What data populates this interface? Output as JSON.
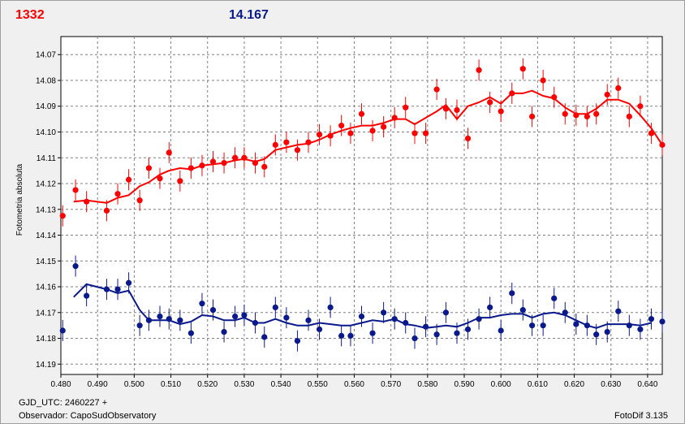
{
  "header": {
    "red_value": "1332",
    "blue_value": "14.167"
  },
  "footer": {
    "gjd": "GJD_UTC: 2460227 +",
    "observer": "Observador: CapoSudObservatory",
    "version": "FotoDif 3.135"
  },
  "colors": {
    "red": "#ff0000",
    "blue": "#0a1a8c",
    "grid": "#808080"
  },
  "chart_data": {
    "type": "scatter",
    "ylabel": "Fotometria absoluta",
    "xlim": [
      0.48,
      0.644
    ],
    "ylim": [
      14.194,
      14.063
    ],
    "y_inverted": true,
    "grid": true,
    "x_ticks": [
      "0.480",
      "0.490",
      "0.500",
      "0.510",
      "0.520",
      "0.530",
      "0.540",
      "0.550",
      "0.560",
      "0.570",
      "0.580",
      "0.590",
      "0.600",
      "0.610",
      "0.620",
      "0.630",
      "0.640"
    ],
    "y_ticks": [
      "14.07",
      "14.08",
      "14.09",
      "14.10",
      "14.11",
      "14.12",
      "14.13",
      "14.14",
      "14.15",
      "14.16",
      "14.17",
      "14.18",
      "14.19"
    ],
    "series": [
      {
        "color": "#ff0000",
        "points": [
          [
            0.4805,
            14.1325
          ],
          [
            0.484,
            14.1225
          ],
          [
            0.487,
            14.127
          ],
          [
            0.4925,
            14.1305
          ],
          [
            0.4955,
            14.124
          ],
          [
            0.4985,
            14.1185
          ],
          [
            0.5015,
            14.1265
          ],
          [
            0.504,
            14.114
          ],
          [
            0.507,
            14.118
          ],
          [
            0.5095,
            14.108
          ],
          [
            0.5125,
            14.119
          ],
          [
            0.5155,
            14.114
          ],
          [
            0.5185,
            14.113
          ],
          [
            0.5215,
            14.1115
          ],
          [
            0.5245,
            14.112
          ],
          [
            0.5275,
            14.11
          ],
          [
            0.53,
            14.11
          ],
          [
            0.533,
            14.112
          ],
          [
            0.5355,
            14.1135
          ],
          [
            0.5385,
            14.105
          ],
          [
            0.5415,
            14.104
          ],
          [
            0.5445,
            14.107
          ],
          [
            0.5475,
            14.104
          ],
          [
            0.5505,
            14.101
          ],
          [
            0.5535,
            14.1015
          ],
          [
            0.5565,
            14.0975
          ],
          [
            0.559,
            14.1005
          ],
          [
            0.562,
            14.093
          ],
          [
            0.565,
            14.0995
          ],
          [
            0.568,
            14.098
          ],
          [
            0.571,
            14.0945
          ],
          [
            0.574,
            14.0905
          ],
          [
            0.5765,
            14.1005
          ],
          [
            0.5795,
            14.1005
          ],
          [
            0.5825,
            14.0835
          ],
          [
            0.585,
            14.091
          ],
          [
            0.588,
            14.0915
          ],
          [
            0.591,
            14.1025
          ],
          [
            0.594,
            14.076
          ],
          [
            0.597,
            14.0885
          ],
          [
            0.6,
            14.092
          ],
          [
            0.603,
            14.085
          ],
          [
            0.606,
            14.0755
          ],
          [
            0.6085,
            14.094
          ],
          [
            0.6115,
            14.08
          ],
          [
            0.6145,
            14.0865
          ],
          [
            0.6175,
            14.093
          ],
          [
            0.6205,
            14.0935
          ],
          [
            0.6235,
            14.094
          ],
          [
            0.626,
            14.093
          ],
          [
            0.629,
            14.0855
          ],
          [
            0.632,
            14.083
          ],
          [
            0.635,
            14.094
          ],
          [
            0.638,
            14.09
          ],
          [
            0.641,
            14.1005
          ],
          [
            0.644,
            14.105
          ]
        ],
        "trend": [
          [
            0.4835,
            14.127
          ],
          [
            0.487,
            14.1265
          ],
          [
            0.4925,
            14.1275
          ],
          [
            0.4955,
            14.1255
          ],
          [
            0.4985,
            14.1245
          ],
          [
            0.5015,
            14.121
          ],
          [
            0.504,
            14.1195
          ],
          [
            0.507,
            14.1165
          ],
          [
            0.5095,
            14.115
          ],
          [
            0.5125,
            14.114
          ],
          [
            0.5155,
            14.1145
          ],
          [
            0.5185,
            14.113
          ],
          [
            0.5215,
            14.1125
          ],
          [
            0.5245,
            14.112
          ],
          [
            0.5275,
            14.111
          ],
          [
            0.53,
            14.1105
          ],
          [
            0.533,
            14.1115
          ],
          [
            0.5355,
            14.1105
          ],
          [
            0.5385,
            14.107
          ],
          [
            0.5415,
            14.106
          ],
          [
            0.5445,
            14.105
          ],
          [
            0.5475,
            14.1045
          ],
          [
            0.5505,
            14.103
          ],
          [
            0.5535,
            14.101
          ],
          [
            0.5565,
            14.0995
          ],
          [
            0.559,
            14.0985
          ],
          [
            0.562,
            14.0975
          ],
          [
            0.565,
            14.0975
          ],
          [
            0.568,
            14.0965
          ],
          [
            0.571,
            14.095
          ],
          [
            0.574,
            14.095
          ],
          [
            0.5765,
            14.097
          ],
          [
            0.5795,
            14.0945
          ],
          [
            0.5825,
            14.092
          ],
          [
            0.585,
            14.0895
          ],
          [
            0.588,
            14.095
          ],
          [
            0.591,
            14.09
          ],
          [
            0.594,
            14.0885
          ],
          [
            0.597,
            14.0865
          ],
          [
            0.6,
            14.089
          ],
          [
            0.603,
            14.085
          ],
          [
            0.606,
            14.085
          ],
          [
            0.6085,
            14.084
          ],
          [
            0.6115,
            14.086
          ],
          [
            0.6145,
            14.087
          ],
          [
            0.6175,
            14.0905
          ],
          [
            0.6205,
            14.093
          ],
          [
            0.6235,
            14.093
          ],
          [
            0.626,
            14.091
          ],
          [
            0.629,
            14.0875
          ],
          [
            0.632,
            14.0875
          ],
          [
            0.635,
            14.089
          ],
          [
            0.638,
            14.0935
          ],
          [
            0.641,
            14.0985
          ],
          [
            0.644,
            14.105
          ]
        ]
      },
      {
        "color": "#0a1a8c",
        "points": [
          [
            0.4805,
            14.177
          ],
          [
            0.484,
            14.152
          ],
          [
            0.487,
            14.1635
          ],
          [
            0.4925,
            14.161
          ],
          [
            0.4955,
            14.161
          ],
          [
            0.4985,
            14.1585
          ],
          [
            0.5015,
            14.175
          ],
          [
            0.504,
            14.173
          ],
          [
            0.507,
            14.1715
          ],
          [
            0.5095,
            14.1725
          ],
          [
            0.5125,
            14.173
          ],
          [
            0.5155,
            14.178
          ],
          [
            0.5185,
            14.1665
          ],
          [
            0.5215,
            14.169
          ],
          [
            0.5245,
            14.1775
          ],
          [
            0.5275,
            14.1715
          ],
          [
            0.53,
            14.171
          ],
          [
            0.533,
            14.174
          ],
          [
            0.5355,
            14.1795
          ],
          [
            0.5385,
            14.168
          ],
          [
            0.5415,
            14.172
          ],
          [
            0.5445,
            14.181
          ],
          [
            0.5475,
            14.173
          ],
          [
            0.5505,
            14.1765
          ],
          [
            0.5535,
            14.168
          ],
          [
            0.5565,
            14.179
          ],
          [
            0.559,
            14.179
          ],
          [
            0.562,
            14.1715
          ],
          [
            0.565,
            14.178
          ],
          [
            0.568,
            14.17
          ],
          [
            0.571,
            14.1725
          ],
          [
            0.574,
            14.174
          ],
          [
            0.5765,
            14.18
          ],
          [
            0.5795,
            14.1755
          ],
          [
            0.5825,
            14.1785
          ],
          [
            0.585,
            14.17
          ],
          [
            0.588,
            14.178
          ],
          [
            0.591,
            14.1765
          ],
          [
            0.594,
            14.1725
          ],
          [
            0.597,
            14.168
          ],
          [
            0.6,
            14.177
          ],
          [
            0.603,
            14.1625
          ],
          [
            0.606,
            14.169
          ],
          [
            0.6085,
            14.175
          ],
          [
            0.6115,
            14.175
          ],
          [
            0.6145,
            14.1645
          ],
          [
            0.6175,
            14.17
          ],
          [
            0.6205,
            14.1745
          ],
          [
            0.6235,
            14.175
          ],
          [
            0.626,
            14.1785
          ],
          [
            0.629,
            14.1775
          ],
          [
            0.632,
            14.1695
          ],
          [
            0.635,
            14.175
          ],
          [
            0.638,
            14.1765
          ],
          [
            0.641,
            14.1725
          ],
          [
            0.644,
            14.1735
          ]
        ],
        "trend": [
          [
            0.4835,
            14.164
          ],
          [
            0.487,
            14.159
          ],
          [
            0.4925,
            14.161
          ],
          [
            0.4955,
            14.1625
          ],
          [
            0.4985,
            14.1615
          ],
          [
            0.5015,
            14.169
          ],
          [
            0.504,
            14.173
          ],
          [
            0.507,
            14.173
          ],
          [
            0.5095,
            14.173
          ],
          [
            0.5125,
            14.1745
          ],
          [
            0.5155,
            14.1735
          ],
          [
            0.5185,
            14.171
          ],
          [
            0.5215,
            14.1715
          ],
          [
            0.5245,
            14.173
          ],
          [
            0.5275,
            14.173
          ],
          [
            0.53,
            14.172
          ],
          [
            0.533,
            14.174
          ],
          [
            0.5355,
            14.174
          ],
          [
            0.5385,
            14.1725
          ],
          [
            0.5415,
            14.174
          ],
          [
            0.5445,
            14.175
          ],
          [
            0.5475,
            14.175
          ],
          [
            0.5505,
            14.174
          ],
          [
            0.5535,
            14.1745
          ],
          [
            0.5565,
            14.175
          ],
          [
            0.559,
            14.175
          ],
          [
            0.562,
            14.174
          ],
          [
            0.565,
            14.173
          ],
          [
            0.568,
            14.1735
          ],
          [
            0.571,
            14.1725
          ],
          [
            0.574,
            14.1745
          ],
          [
            0.5765,
            14.175
          ],
          [
            0.5795,
            14.176
          ],
          [
            0.5825,
            14.1755
          ],
          [
            0.585,
            14.175
          ],
          [
            0.588,
            14.1755
          ],
          [
            0.591,
            14.174
          ],
          [
            0.594,
            14.172
          ],
          [
            0.597,
            14.172
          ],
          [
            0.6,
            14.171
          ],
          [
            0.603,
            14.1705
          ],
          [
            0.606,
            14.1705
          ],
          [
            0.6085,
            14.172
          ],
          [
            0.6115,
            14.1705
          ],
          [
            0.6145,
            14.17
          ],
          [
            0.6175,
            14.171
          ],
          [
            0.6205,
            14.173
          ],
          [
            0.6235,
            14.175
          ],
          [
            0.626,
            14.176
          ],
          [
            0.629,
            14.1745
          ],
          [
            0.632,
            14.1745
          ],
          [
            0.635,
            14.1745
          ],
          [
            0.638,
            14.175
          ],
          [
            0.641,
            14.174
          ]
        ]
      }
    ]
  }
}
